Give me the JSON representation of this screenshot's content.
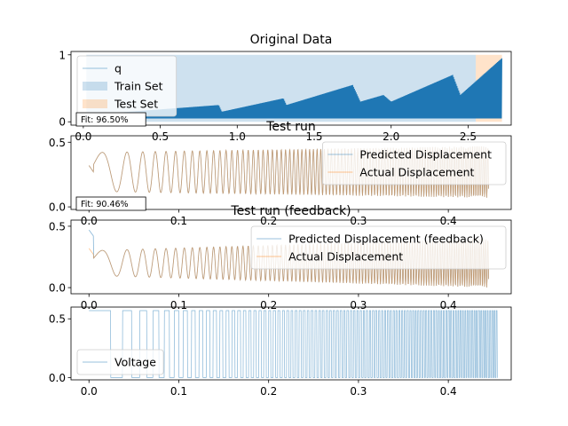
{
  "chart_data": [
    {
      "type": "area",
      "title": "Original Data",
      "xlabel": "",
      "ylabel": "",
      "xlim": [
        -0.08,
        2.78
      ],
      "ylim": [
        -0.05,
        1.05
      ],
      "xticks": [
        0.0,
        0.5,
        1.0,
        1.5,
        2.0,
        2.5
      ],
      "xtick_labels": [
        "0.0",
        "0.5",
        "1.0",
        "1.5",
        "2.0",
        "2.5"
      ],
      "yticks": [
        0,
        1
      ],
      "ytick_labels": [
        "0",
        "1"
      ],
      "legend": {
        "location": "upper left"
      },
      "series": [
        {
          "name": "q",
          "kind": "line",
          "color": "#1f77b4",
          "envelope_x": [
            0.0,
            0.05,
            0.3,
            0.88,
            0.9,
            1.3,
            1.32,
            1.75,
            1.8,
            1.95,
            2.0,
            2.4,
            2.45,
            2.72
          ],
          "envelope_hi": [
            0.1,
            0.1,
            0.15,
            0.25,
            0.15,
            0.35,
            0.25,
            0.55,
            0.3,
            0.4,
            0.3,
            0.7,
            0.4,
            0.95
          ],
          "lo": 0.05
        },
        {
          "name": "Train Set",
          "kind": "span",
          "color": "#1f77b4",
          "x": [
            0.02,
            2.55
          ],
          "y": [
            0,
            1
          ]
        },
        {
          "name": "Test Set",
          "kind": "span",
          "color": "#ff7f0e",
          "x": [
            2.55,
            2.72
          ],
          "y": [
            0,
            1
          ]
        }
      ]
    },
    {
      "type": "line",
      "title": "Test run",
      "annotation": "Fit: 96.50%",
      "xlabel": "",
      "ylabel": "",
      "xlim": [
        -0.02,
        0.47
      ],
      "ylim": [
        -0.02,
        0.55
      ],
      "xticks": [
        0.0,
        0.1,
        0.2,
        0.3,
        0.4
      ],
      "xtick_labels": [
        "0.0",
        "0.1",
        "0.2",
        "0.3",
        "0.4"
      ],
      "yticks": [
        0.0,
        0.5
      ],
      "ytick_labels": [
        "0.0",
        "0.5"
      ],
      "legend": {
        "location": "upper right"
      },
      "duration": 0.445,
      "series": [
        {
          "name": "Predicted Displacement",
          "color": "#1f77b4",
          "center": 0.27,
          "amp_start": 0.15,
          "amp_end": 0.2,
          "start": 0.32
        },
        {
          "name": "Actual Displacement",
          "color": "#ff7f0e",
          "center": 0.27,
          "amp_start": 0.15,
          "amp_end": 0.2,
          "start": 0.32
        }
      ]
    },
    {
      "type": "line",
      "title": "Test run (feedback)",
      "annotation": "Fit: 90.46%",
      "xlabel": "",
      "ylabel": "",
      "xlim": [
        -0.02,
        0.47
      ],
      "ylim": [
        -0.05,
        0.55
      ],
      "xticks": [
        0.0,
        0.1,
        0.2,
        0.3,
        0.4
      ],
      "xtick_labels": [
        "0.0",
        "0.1",
        "0.2",
        "0.3",
        "0.4"
      ],
      "yticks": [
        0.0,
        0.5
      ],
      "ytick_labels": [
        "0.0",
        "0.5"
      ],
      "legend": {
        "location": "upper right"
      },
      "duration": 0.445,
      "series": [
        {
          "name": "Predicted Displacement (feedback)",
          "color": "#1f77b4",
          "center": 0.2,
          "amp_start": 0.1,
          "amp_end": 0.2,
          "start": 0.47
        },
        {
          "name": "Actual Displacement",
          "color": "#ff7f0e",
          "center": 0.2,
          "amp_start": 0.1,
          "amp_end": 0.2,
          "start": 0.32
        }
      ]
    },
    {
      "type": "line",
      "title": "",
      "xlabel": "",
      "ylabel": "",
      "xlim": [
        -0.02,
        0.47
      ],
      "ylim": [
        -0.02,
        0.6
      ],
      "xticks": [
        0.0,
        0.1,
        0.2,
        0.3,
        0.4
      ],
      "xtick_labels": [
        "0.0",
        "0.1",
        "0.2",
        "0.3",
        "0.4"
      ],
      "yticks": [
        0.0,
        0.5
      ],
      "ytick_labels": [
        "0.0",
        "0.5"
      ],
      "legend": {
        "location": "lower left"
      },
      "duration": 0.455,
      "series": [
        {
          "name": "Voltage",
          "color": "#1f77b4",
          "low": 0.0,
          "high": 0.57
        }
      ]
    }
  ]
}
